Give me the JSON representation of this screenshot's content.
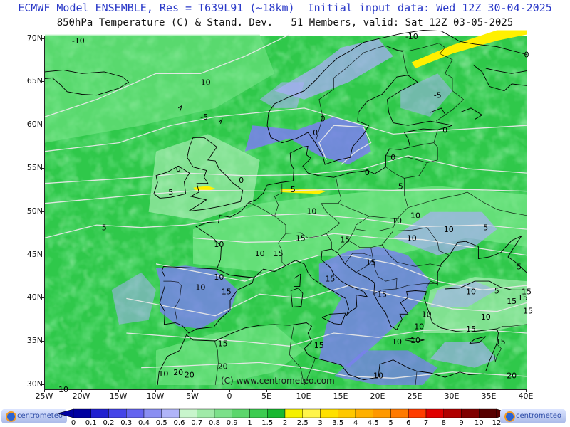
{
  "header": {
    "line1": "ECMWF Model ENSEMBLE, Res = T639L91 (~18km)  Initial input data: Wed 12Z 30-04-2025",
    "line2": "850hPa Temperature (C) & Stand. Dev.   51 Members, valid: Sat 12Z 03-05-2025"
  },
  "map": {
    "lat_labels": [
      "70N",
      "65N",
      "60N",
      "55N",
      "50N",
      "45N",
      "40N",
      "35N",
      "30N"
    ],
    "lon_labels": [
      "25W",
      "20W",
      "15W",
      "10W",
      "5W",
      "0",
      "5E",
      "10E",
      "15E",
      "20E",
      "25E",
      "30E",
      "35E",
      "40E"
    ],
    "colors": {
      "ocean_green": "#2fc84a",
      "mid_green": "#41d65a",
      "light_green": "#7be88c",
      "pale_green": "#b8f2c0",
      "blue_purple": "#7b7ff0",
      "light_blue": "#a8aef7",
      "yellow": "#fff000",
      "coast": "#000000",
      "contour": "#e8e8e8"
    },
    "contour_labels": [
      {
        "text": "-10",
        "lon": -20.5,
        "lat": 69.8
      },
      {
        "text": "-10",
        "lon": 24.5,
        "lat": 70.3
      },
      {
        "text": "0",
        "lon": 40.0,
        "lat": 68.2
      },
      {
        "text": "-10",
        "lon": -3.5,
        "lat": 65.0
      },
      {
        "text": "-5",
        "lon": -3.5,
        "lat": 61.0
      },
      {
        "text": "-5",
        "lon": 28.0,
        "lat": 63.5
      },
      {
        "text": "0",
        "lon": 12.5,
        "lat": 60.8
      },
      {
        "text": "0",
        "lon": 11.5,
        "lat": 59.2
      },
      {
        "text": "0",
        "lon": 29.0,
        "lat": 59.5
      },
      {
        "text": "0",
        "lon": -7.0,
        "lat": 55.0
      },
      {
        "text": "0",
        "lon": 1.5,
        "lat": 53.7
      },
      {
        "text": "0",
        "lon": 18.5,
        "lat": 54.6
      },
      {
        "text": "0",
        "lon": 22.0,
        "lat": 56.3
      },
      {
        "text": "5",
        "lon": -8.0,
        "lat": 52.3
      },
      {
        "text": "5",
        "lon": 8.5,
        "lat": 52.6
      },
      {
        "text": "5",
        "lon": 23.0,
        "lat": 53.0
      },
      {
        "text": "5",
        "lon": -17.0,
        "lat": 48.2
      },
      {
        "text": "10",
        "lon": 11.0,
        "lat": 50.1
      },
      {
        "text": "10",
        "lon": 22.5,
        "lat": 49.0
      },
      {
        "text": "10",
        "lon": 25.0,
        "lat": 49.6
      },
      {
        "text": "10",
        "lon": 29.5,
        "lat": 48.0
      },
      {
        "text": "5",
        "lon": 34.5,
        "lat": 48.2
      },
      {
        "text": "10",
        "lon": 24.5,
        "lat": 47.0
      },
      {
        "text": "15",
        "lon": 9.5,
        "lat": 47.0
      },
      {
        "text": "15",
        "lon": 15.5,
        "lat": 46.8
      },
      {
        "text": "10",
        "lon": -1.5,
        "lat": 46.3
      },
      {
        "text": "10",
        "lon": 4.0,
        "lat": 45.2
      },
      {
        "text": "15",
        "lon": 6.5,
        "lat": 45.2
      },
      {
        "text": "15",
        "lon": 19.0,
        "lat": 44.2
      },
      {
        "text": "5",
        "lon": 39.0,
        "lat": 43.7
      },
      {
        "text": "10",
        "lon": -1.5,
        "lat": 42.5
      },
      {
        "text": "10",
        "lon": -4.0,
        "lat": 41.3
      },
      {
        "text": "15",
        "lon": -0.5,
        "lat": 40.8
      },
      {
        "text": "15",
        "lon": 13.5,
        "lat": 42.3
      },
      {
        "text": "15",
        "lon": 20.5,
        "lat": 40.5
      },
      {
        "text": "10",
        "lon": 32.5,
        "lat": 40.8
      },
      {
        "text": "5",
        "lon": 36.0,
        "lat": 40.9
      },
      {
        "text": "15",
        "lon": 38.0,
        "lat": 39.7
      },
      {
        "text": "15",
        "lon": 39.5,
        "lat": 40.1
      },
      {
        "text": "15",
        "lon": 40.0,
        "lat": 40.8
      },
      {
        "text": "15",
        "lon": 40.2,
        "lat": 38.6
      },
      {
        "text": "10",
        "lon": 26.5,
        "lat": 38.2
      },
      {
        "text": "10",
        "lon": 34.5,
        "lat": 37.9
      },
      {
        "text": "10",
        "lon": 25.5,
        "lat": 36.8
      },
      {
        "text": "10",
        "lon": 25.0,
        "lat": 35.2
      },
      {
        "text": "10",
        "lon": 22.5,
        "lat": 35.0
      },
      {
        "text": "15",
        "lon": 32.5,
        "lat": 36.5
      },
      {
        "text": "15",
        "lon": 36.5,
        "lat": 35.0
      },
      {
        "text": "15",
        "lon": 12.0,
        "lat": 34.6
      },
      {
        "text": "15",
        "lon": -1.0,
        "lat": 34.8
      },
      {
        "text": "20",
        "lon": -1.0,
        "lat": 32.2
      },
      {
        "text": "20",
        "lon": -7.0,
        "lat": 31.5
      },
      {
        "text": "20",
        "lon": -5.5,
        "lat": 31.2
      },
      {
        "text": "10",
        "lon": -9.0,
        "lat": 31.3
      },
      {
        "text": "10",
        "lon": 20.0,
        "lat": 31.1
      },
      {
        "text": "20",
        "lon": 38.0,
        "lat": 31.1
      },
      {
        "text": "10",
        "lon": -22.5,
        "lat": 29.5
      }
    ]
  },
  "copyright": "(C) www.centrometeo.com",
  "legend": {
    "labels": [
      "0",
      "0.1",
      "0.2",
      "0.3",
      "0.4",
      "0.5",
      "0.6",
      "0.7",
      "0.8",
      "0.9",
      "1",
      "1.5",
      "2",
      "2.5",
      "3",
      "3.5",
      "4",
      "4.5",
      "5",
      "6",
      "7",
      "8",
      "9",
      "10",
      "12"
    ],
    "colors": [
      "#0000a0",
      "#2020d0",
      "#4444e8",
      "#6464f0",
      "#8a8ef2",
      "#b0b4f8",
      "#c8f5cc",
      "#a0eaa8",
      "#7ce08a",
      "#5cd66c",
      "#3ccc50",
      "#18b830",
      "#f5f000",
      "#fff44a",
      "#ffe000",
      "#ffc800",
      "#ffb000",
      "#ff9800",
      "#ff7a00",
      "#ff3c00",
      "#e00000",
      "#b00000",
      "#800000",
      "#580000"
    ],
    "logo_text": "centrometeo"
  }
}
